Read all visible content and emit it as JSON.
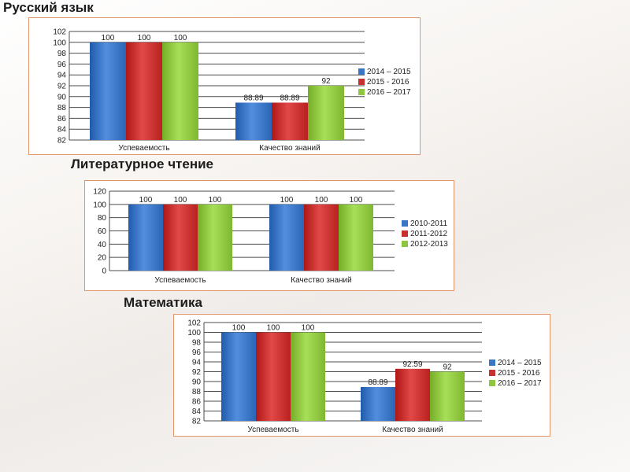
{
  "titles": [
    "Русский язык",
    "Литературное чтение",
    "Математика"
  ],
  "chart_data": [
    {
      "type": "bar",
      "title": "Русский язык",
      "categories": [
        "Успеваемость",
        "Качество знаний"
      ],
      "series": [
        {
          "name": "2014 – 2015",
          "values": [
            100,
            88.89
          ],
          "color": "#3a74c4"
        },
        {
          "name": "2015 - 2016",
          "values": [
            100,
            88.89
          ],
          "color": "#c8302f"
        },
        {
          "name": "2016 – 2017",
          "values": [
            100,
            92
          ],
          "color": "#8ec63f"
        }
      ],
      "data_labels": [
        [
          "100",
          "88.89"
        ],
        [
          "100",
          "88.89"
        ],
        [
          "100",
          "92"
        ]
      ],
      "ylim": [
        82,
        102
      ],
      "yticks": [
        82,
        84,
        86,
        88,
        90,
        92,
        94,
        96,
        98,
        100,
        102
      ],
      "grid": true,
      "legend": "right"
    },
    {
      "type": "bar",
      "title": "Литературное чтение",
      "categories": [
        "Успеваемость",
        "Качество знаний"
      ],
      "series": [
        {
          "name": "2010-2011",
          "values": [
            100,
            100
          ],
          "color": "#3a74c4"
        },
        {
          "name": "2011-2012",
          "values": [
            100,
            100
          ],
          "color": "#c8302f"
        },
        {
          "name": "2012-2013",
          "values": [
            100,
            100
          ],
          "color": "#8ec63f"
        }
      ],
      "data_labels": [
        [
          "100",
          "100"
        ],
        [
          "100",
          "100"
        ],
        [
          "100",
          "100"
        ]
      ],
      "ylim": [
        0,
        120
      ],
      "yticks": [
        0,
        20,
        40,
        60,
        80,
        100,
        120
      ],
      "grid": true,
      "legend": "right"
    },
    {
      "type": "bar",
      "title": "Математика",
      "categories": [
        "Успеваемость",
        "Качество знаний"
      ],
      "series": [
        {
          "name": "2014 – 2015",
          "values": [
            100,
            88.89
          ],
          "color": "#3a74c4"
        },
        {
          "name": "2015 - 2016",
          "values": [
            100,
            92.59
          ],
          "color": "#c8302f"
        },
        {
          "name": "2016 – 2017",
          "values": [
            100,
            92
          ],
          "color": "#8ec63f"
        }
      ],
      "data_labels": [
        [
          "100",
          "88.89"
        ],
        [
          "100",
          "92.59"
        ],
        [
          "100",
          "92"
        ]
      ],
      "ylim": [
        82,
        102
      ],
      "yticks": [
        82,
        84,
        86,
        88,
        90,
        92,
        94,
        96,
        98,
        100,
        102
      ],
      "grid": true,
      "legend": "right"
    }
  ]
}
